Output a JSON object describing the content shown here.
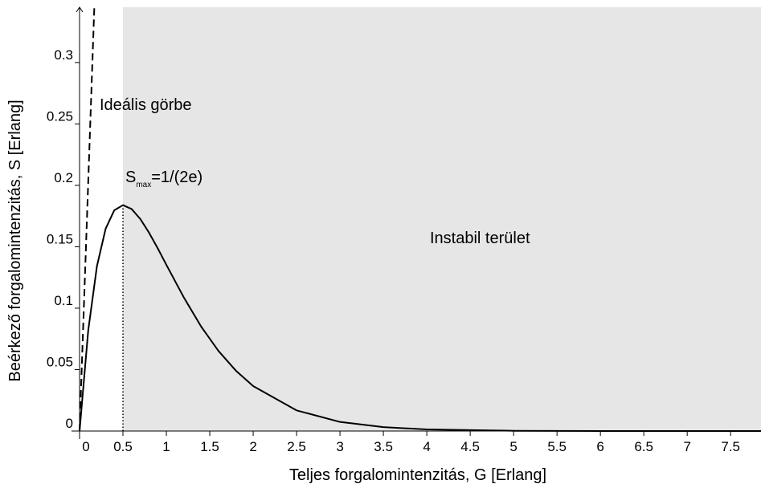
{
  "chart_data": {
    "type": "line",
    "x_label": "Teljes forgalomintenzitás, G [Erlang]",
    "y_label": "Beérkező forgalomintenzitás, S [Erlang]",
    "xlim": [
      0,
      7.85
    ],
    "ylim": [
      0,
      0.345
    ],
    "xticks": [
      0,
      0.5,
      1,
      1.5,
      2,
      2.5,
      3,
      3.5,
      4,
      4.5,
      5,
      5.5,
      6,
      6.5,
      7,
      7.5
    ],
    "yticks": [
      0,
      0.05,
      0.1,
      0.15,
      0.2,
      0.25,
      0.3
    ],
    "shade_from": 0.5,
    "shade_color": "#e6e6e6",
    "vline": 0.5,
    "series": [
      {
        "color": "#000000",
        "style": "solid",
        "x": [
          0,
          0.1,
          0.2,
          0.3,
          0.4,
          0.5,
          0.6,
          0.7,
          0.8,
          0.9,
          1.0,
          1.2,
          1.4,
          1.6,
          1.8,
          2.0,
          2.5,
          3,
          3.5,
          4,
          5,
          6,
          7.85
        ],
        "values": [
          0,
          0.0819,
          0.1341,
          0.1646,
          0.1797,
          0.1839,
          0.1807,
          0.1726,
          0.1615,
          0.1488,
          0.1353,
          0.1089,
          0.0851,
          0.0652,
          0.0492,
          0.0366,
          0.0168,
          0.0074,
          0.0032,
          0.0013,
          0.0002,
          0,
          0
        ]
      },
      {
        "color": "#000000",
        "style": "dashed",
        "x": [
          0,
          0.17
        ],
        "values": [
          0,
          0.345
        ]
      }
    ],
    "annotations": {
      "ideal": "Ideális görbe",
      "smax_base": "S",
      "smax_sub": "max",
      "smax_rest": "=1/(2e)",
      "unstable": "Instabil terület"
    }
  }
}
